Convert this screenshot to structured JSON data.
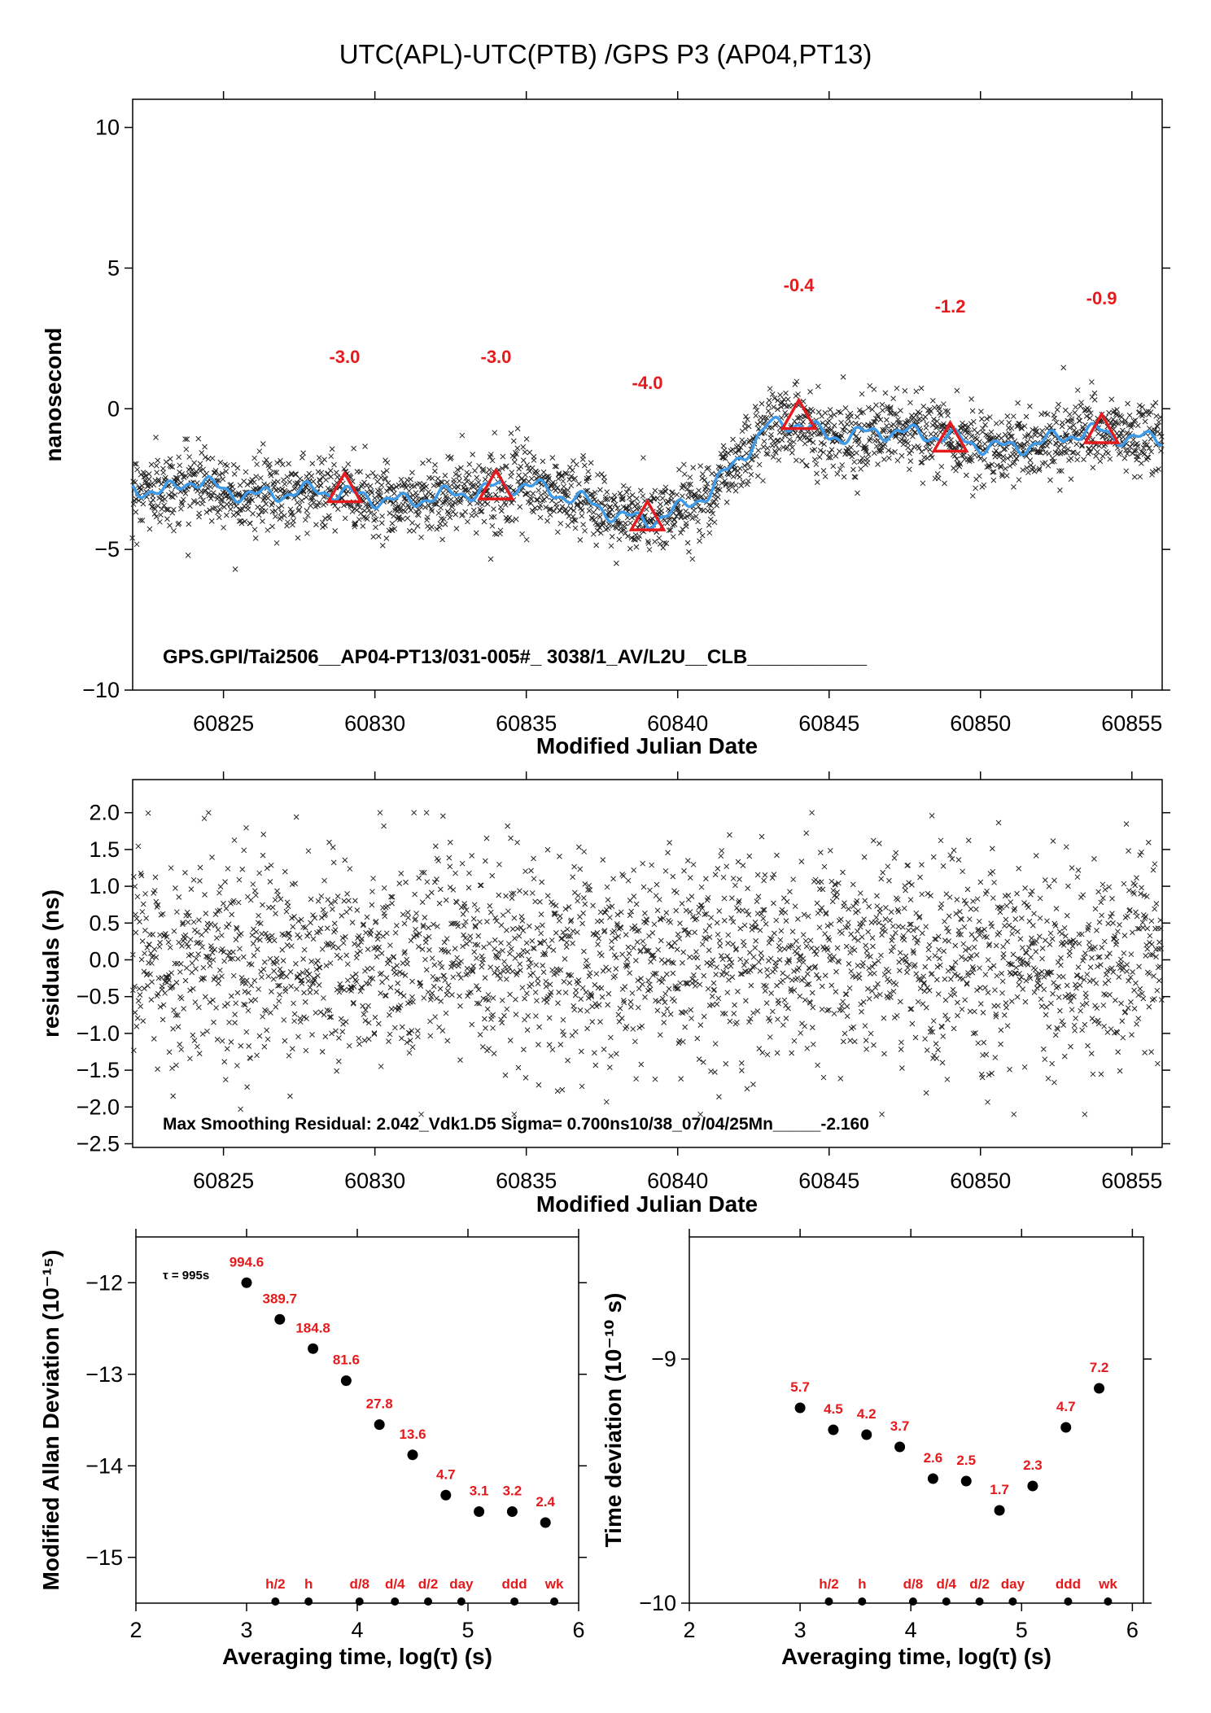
{
  "title": "UTC(APL)-UTC(PTB)  /GPS  P3  (AP04,PT13)",
  "colors": {
    "smooth_line": "#3d9bea",
    "marker_red": "#e41a1c",
    "points": "#222222"
  },
  "chart_data": [
    {
      "type": "scatter",
      "xlabel": "Modified Julian Date",
      "ylabel": "nanosecond",
      "xlim": [
        60822,
        60856
      ],
      "ylim": [
        -10,
        11
      ],
      "xticks": [
        "60825",
        "60830",
        "60835",
        "60840",
        "60845",
        "60850",
        "60855"
      ],
      "yticks": [
        "10",
        "5",
        "0",
        "−5",
        "−10"
      ],
      "annotation": "GPS.GPI/Tai2506__AP04-PT13/031-005#_  3038/1_AV/L2U__CLB___________",
      "series": [
        {
          "x": [
            60822,
            60823,
            60824,
            60825,
            60826,
            60827,
            60828,
            60829,
            60830,
            60831,
            60832,
            60833,
            60834,
            60835,
            60836,
            60837,
            60838,
            60839,
            60840,
            60841,
            60842,
            60843,
            60844,
            60845,
            60846,
            60847,
            60848,
            60849,
            60850,
            60851,
            60852,
            60853,
            60854,
            60855,
            60856
          ],
          "y": [
            -2.8,
            -3.0,
            -2.5,
            -2.9,
            -3.1,
            -3.0,
            -2.9,
            -3.0,
            -3.2,
            -3.3,
            -3.1,
            -3.0,
            -2.8,
            -2.7,
            -3.0,
            -3.3,
            -3.8,
            -4.0,
            -3.6,
            -3.0,
            -1.8,
            -0.6,
            -0.5,
            -1.0,
            -0.9,
            -0.8,
            -0.9,
            -1.0,
            -1.3,
            -1.4,
            -1.2,
            -0.9,
            -0.8,
            -1.1,
            -1.0
          ]
        }
      ],
      "markers": {
        "x": [
          60829,
          60834,
          60839,
          60844,
          60849,
          60854
        ],
        "y": [
          -2.9,
          -2.8,
          -3.9,
          -0.3,
          -1.1,
          -0.8
        ],
        "labels": [
          "-3.0",
          "-3.0",
          "-4.0",
          "-0.4",
          "-1.2",
          "-0.9"
        ]
      }
    },
    {
      "type": "scatter",
      "xlabel": "Modified Julian Date",
      "ylabel": "residuals (ns)",
      "xlim": [
        60822,
        60856
      ],
      "ylim": [
        -2.55,
        2.45
      ],
      "xticks": [
        "60825",
        "60830",
        "60835",
        "60840",
        "60845",
        "60850",
        "60855"
      ],
      "yticks": [
        "2.0",
        "1.5",
        "1.0",
        "0.5",
        "0.0",
        "−0.5",
        "−1.0",
        "−1.5",
        "−2.0",
        "−2.5"
      ],
      "annotation": "Max Smoothing Residual: 2.042_Vdk1.D5  Sigma= 0.700ns10/38_07/04/25Mn_____-2.160",
      "sigma": 0.7
    },
    {
      "type": "scatter",
      "xlabel": "Averaging time, log(τ) (s)",
      "ylabel": "Modified Allan Deviation (10⁻¹⁵)",
      "xlim": [
        2,
        6
      ],
      "ylim": [
        -15.5,
        -11.5
      ],
      "xticks": [
        "2",
        "3",
        "4",
        "5",
        "6"
      ],
      "yticks": [
        "−12",
        "−13",
        "−14",
        "−15"
      ],
      "tau_note": "τ = 995s",
      "x": [
        3.0,
        3.3,
        3.6,
        3.9,
        4.2,
        4.5,
        4.8,
        5.1,
        5.4,
        5.7
      ],
      "y": [
        -12.0,
        -12.4,
        -12.72,
        -13.07,
        -13.55,
        -13.88,
        -14.32,
        -14.5,
        -14.5,
        -14.62
      ],
      "labels": [
        "994.6",
        "389.7",
        "184.8",
        "81.6",
        "27.8",
        "13.6",
        "4.7",
        "3.1",
        "3.2",
        "2.4"
      ],
      "ref_x": [
        3.26,
        3.56,
        4.02,
        4.34,
        4.64,
        4.94,
        5.42,
        5.78
      ],
      "ref_labels": [
        "h/2",
        "h",
        "d/8",
        "d/4",
        "d/2",
        "day",
        "ddd",
        "wk"
      ]
    },
    {
      "type": "scatter",
      "xlabel": "Averaging time, log(τ) (s)",
      "ylabel": "Time deviation (10⁻¹⁰ s)",
      "xlim": [
        2,
        6.1
      ],
      "ylim": [
        -10,
        -8.5
      ],
      "xticks": [
        "2",
        "3",
        "4",
        "5",
        "6"
      ],
      "yticks": [
        "−9",
        "−10"
      ],
      "x": [
        3.0,
        3.3,
        3.6,
        3.9,
        4.2,
        4.5,
        4.8,
        5.1,
        5.4,
        5.7
      ],
      "y": [
        -9.2,
        -9.29,
        -9.31,
        -9.36,
        -9.49,
        -9.5,
        -9.62,
        -9.52,
        -9.28,
        -9.12
      ],
      "labels": [
        "5.7",
        "4.5",
        "4.2",
        "3.7",
        "2.6",
        "2.5",
        "1.7",
        "2.3",
        "4.7",
        "7.2"
      ],
      "ref_x": [
        3.26,
        3.56,
        4.02,
        4.32,
        4.62,
        4.92,
        5.42,
        5.78
      ],
      "ref_labels": [
        "h/2",
        "h",
        "d/8",
        "d/4",
        "d/2",
        "day",
        "ddd",
        "wk"
      ]
    }
  ]
}
